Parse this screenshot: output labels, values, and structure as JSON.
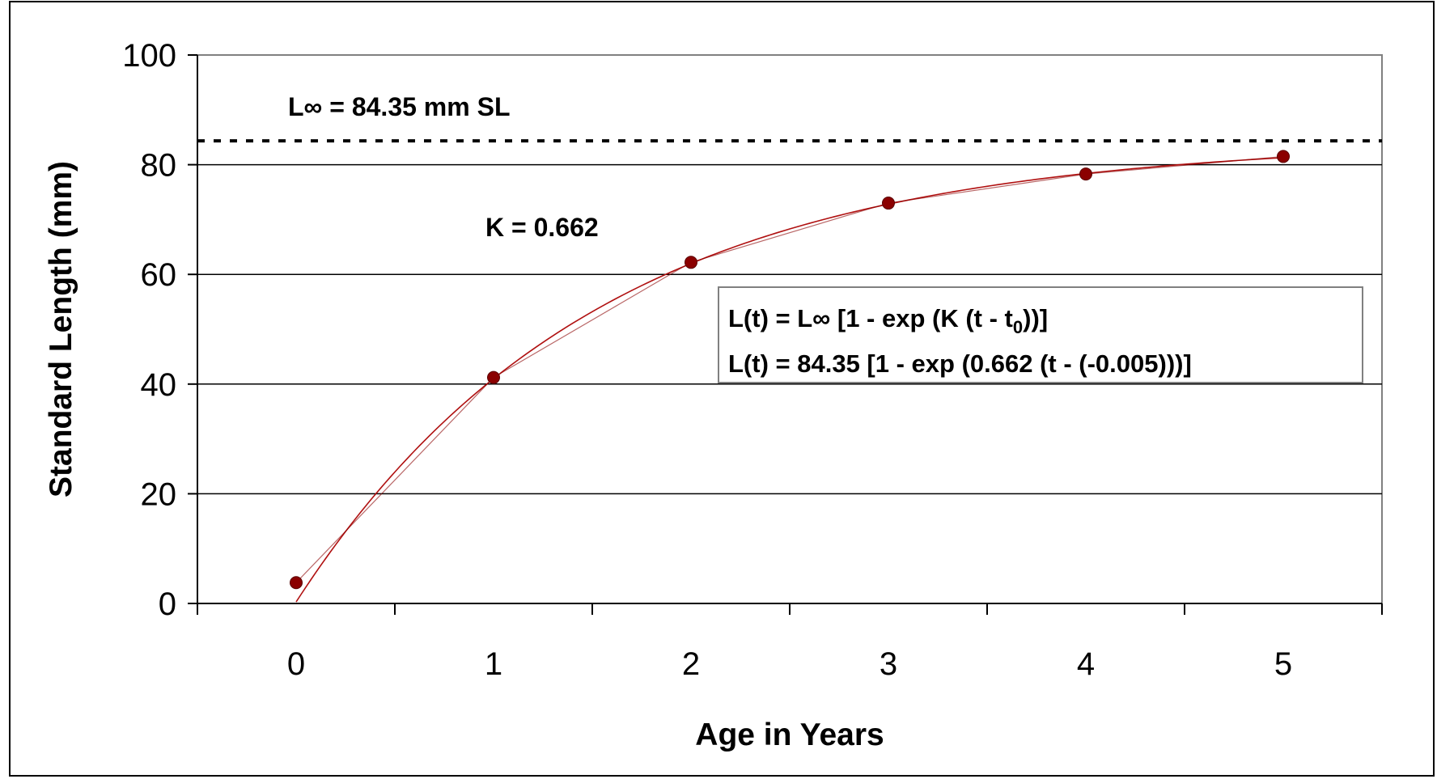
{
  "chart_data": {
    "type": "line",
    "title": "",
    "xlabel": "Age in Years",
    "ylabel": "Standard Length (mm)",
    "x_ticks": [
      "0",
      "1",
      "2",
      "3",
      "4",
      "5"
    ],
    "y_ticks": [
      "0",
      "20",
      "40",
      "60",
      "80",
      "100"
    ],
    "xlim": [
      -0.5,
      5.5
    ],
    "ylim": [
      0,
      100
    ],
    "grid": "horizontal",
    "legend": "none",
    "series": [
      {
        "x": [
          0,
          1,
          2,
          3,
          4,
          5
        ],
        "y": [
          3.8,
          41.2,
          62.2,
          73,
          78.3,
          81.5
        ],
        "color": "#8b0000"
      }
    ],
    "fitted_curve": {
      "linf": 84.35,
      "k": 0.662,
      "t0": -0.005,
      "color": "#b01010"
    },
    "reference_line": {
      "y": 84.35,
      "style": "dotted",
      "label": "L∞ = 84.35 mm SL"
    },
    "annotations": {
      "k_label": "K = 0.662",
      "equation_general_prefix": "L(t) = L∞ [1 - exp (K (t - t",
      "equation_general_sub": "0",
      "equation_general_suffix": "))]",
      "equation_fitted": "L(t) = 84.35 [1 - exp (0.662 (t - (-0.005)))]"
    }
  }
}
